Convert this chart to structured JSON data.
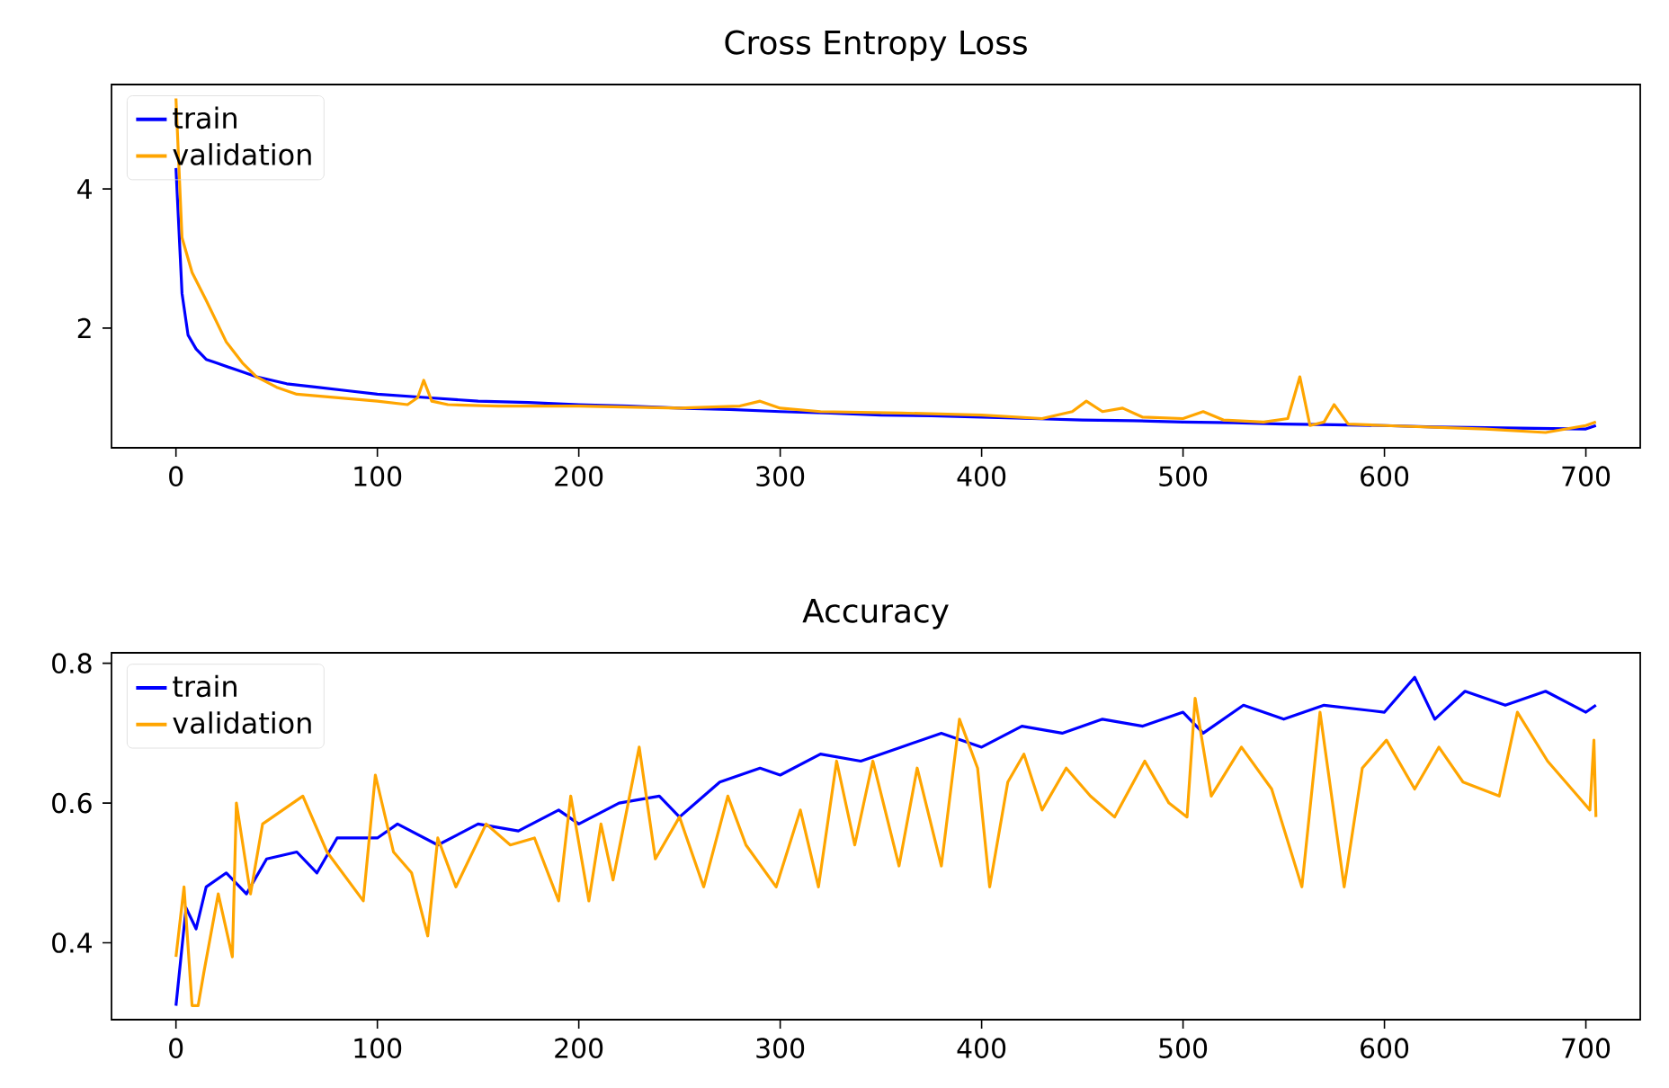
{
  "chart_data": [
    {
      "type": "line",
      "title": "Cross Entropy Loss",
      "xlim": [
        -32,
        727
      ],
      "ylim": [
        0.28,
        5.5
      ],
      "xticks": [
        0,
        100,
        200,
        300,
        400,
        500,
        600,
        700
      ],
      "yticks": [
        2,
        4
      ],
      "legend": "top left",
      "grid": false,
      "series": [
        {
          "name": "train",
          "color": "#0000ff",
          "x": [
            0,
            3,
            6,
            10,
            15,
            20,
            30,
            40,
            55,
            70,
            85,
            100,
            125,
            150,
            175,
            200,
            225,
            250,
            275,
            300,
            325,
            350,
            375,
            400,
            425,
            450,
            475,
            500,
            525,
            550,
            575,
            600,
            625,
            650,
            675,
            700,
            705
          ],
          "values": [
            4.3,
            2.5,
            1.9,
            1.7,
            1.55,
            1.5,
            1.4,
            1.3,
            1.2,
            1.15,
            1.1,
            1.05,
            1.0,
            0.95,
            0.93,
            0.9,
            0.88,
            0.85,
            0.83,
            0.8,
            0.78,
            0.75,
            0.74,
            0.72,
            0.7,
            0.68,
            0.67,
            0.65,
            0.64,
            0.62,
            0.61,
            0.6,
            0.58,
            0.57,
            0.56,
            0.55,
            0.6
          ]
        },
        {
          "name": "validation",
          "color": "#ffa500",
          "x": [
            0,
            3,
            8,
            15,
            25,
            33,
            40,
            50,
            60,
            80,
            100,
            115,
            120,
            123,
            127,
            135,
            160,
            200,
            250,
            280,
            290,
            300,
            320,
            360,
            400,
            430,
            445,
            452,
            460,
            470,
            480,
            500,
            510,
            520,
            540,
            552,
            558,
            563,
            570,
            575,
            582,
            600,
            650,
            680,
            700,
            705
          ],
          "values": [
            5.3,
            3.3,
            2.8,
            2.4,
            1.8,
            1.5,
            1.3,
            1.15,
            1.05,
            1.0,
            0.95,
            0.9,
            1.0,
            1.25,
            0.95,
            0.9,
            0.88,
            0.88,
            0.85,
            0.88,
            0.95,
            0.85,
            0.8,
            0.78,
            0.75,
            0.7,
            0.8,
            0.95,
            0.8,
            0.85,
            0.72,
            0.7,
            0.8,
            0.68,
            0.65,
            0.7,
            1.3,
            0.6,
            0.65,
            0.9,
            0.62,
            0.6,
            0.55,
            0.5,
            0.6,
            0.65
          ]
        }
      ]
    },
    {
      "type": "line",
      "title": "Accuracy",
      "xlim": [
        -32,
        727
      ],
      "ylim": [
        0.29,
        0.815
      ],
      "xticks": [
        0,
        100,
        200,
        300,
        400,
        500,
        600,
        700
      ],
      "yticks": [
        0.4,
        0.6,
        0.8
      ],
      "legend": "top left",
      "grid": false,
      "series": [
        {
          "name": "train",
          "color": "#0000ff",
          "x": [
            0,
            5,
            10,
            15,
            25,
            35,
            45,
            60,
            70,
            80,
            100,
            110,
            130,
            150,
            170,
            190,
            200,
            220,
            240,
            250,
            270,
            290,
            300,
            320,
            340,
            360,
            380,
            400,
            420,
            440,
            460,
            480,
            500,
            510,
            530,
            550,
            570,
            600,
            615,
            625,
            640,
            660,
            680,
            700,
            705
          ],
          "values": [
            0.31,
            0.45,
            0.42,
            0.48,
            0.5,
            0.47,
            0.52,
            0.53,
            0.5,
            0.55,
            0.55,
            0.57,
            0.54,
            0.57,
            0.56,
            0.59,
            0.57,
            0.6,
            0.61,
            0.58,
            0.63,
            0.65,
            0.64,
            0.67,
            0.66,
            0.68,
            0.7,
            0.68,
            0.71,
            0.7,
            0.72,
            0.71,
            0.73,
            0.7,
            0.74,
            0.72,
            0.74,
            0.73,
            0.78,
            0.72,
            0.76,
            0.74,
            0.76,
            0.73,
            0.74
          ]
        },
        {
          "name": "validation",
          "color": "#ffa500",
          "x": [
            0,
            4,
            8,
            11,
            14,
            21,
            28,
            30,
            37,
            43,
            63,
            75,
            93,
            99,
            108,
            117,
            125,
            130,
            139,
            154,
            166,
            178,
            190,
            196,
            205,
            211,
            217,
            230,
            238,
            250,
            262,
            274,
            283,
            298,
            310,
            319,
            328,
            337,
            346,
            359,
            368,
            380,
            389,
            398,
            404,
            413,
            421,
            430,
            442,
            454,
            466,
            481,
            493,
            502,
            506,
            514,
            529,
            544,
            559,
            568,
            580,
            589,
            601,
            615,
            627,
            639,
            657,
            666,
            681,
            696,
            702,
            704,
            705
          ],
          "values": [
            0.38,
            0.48,
            0.31,
            0.31,
            0.36,
            0.47,
            0.38,
            0.6,
            0.47,
            0.57,
            0.61,
            0.53,
            0.46,
            0.64,
            0.53,
            0.5,
            0.41,
            0.55,
            0.48,
            0.57,
            0.54,
            0.55,
            0.46,
            0.61,
            0.46,
            0.57,
            0.49,
            0.68,
            0.52,
            0.58,
            0.48,
            0.61,
            0.54,
            0.48,
            0.59,
            0.48,
            0.66,
            0.54,
            0.66,
            0.51,
            0.65,
            0.51,
            0.72,
            0.65,
            0.48,
            0.63,
            0.67,
            0.59,
            0.65,
            0.61,
            0.58,
            0.66,
            0.6,
            0.58,
            0.75,
            0.61,
            0.68,
            0.62,
            0.48,
            0.73,
            0.48,
            0.65,
            0.69,
            0.62,
            0.68,
            0.63,
            0.61,
            0.73,
            0.66,
            0.61,
            0.59,
            0.69,
            0.58
          ]
        }
      ]
    }
  ]
}
